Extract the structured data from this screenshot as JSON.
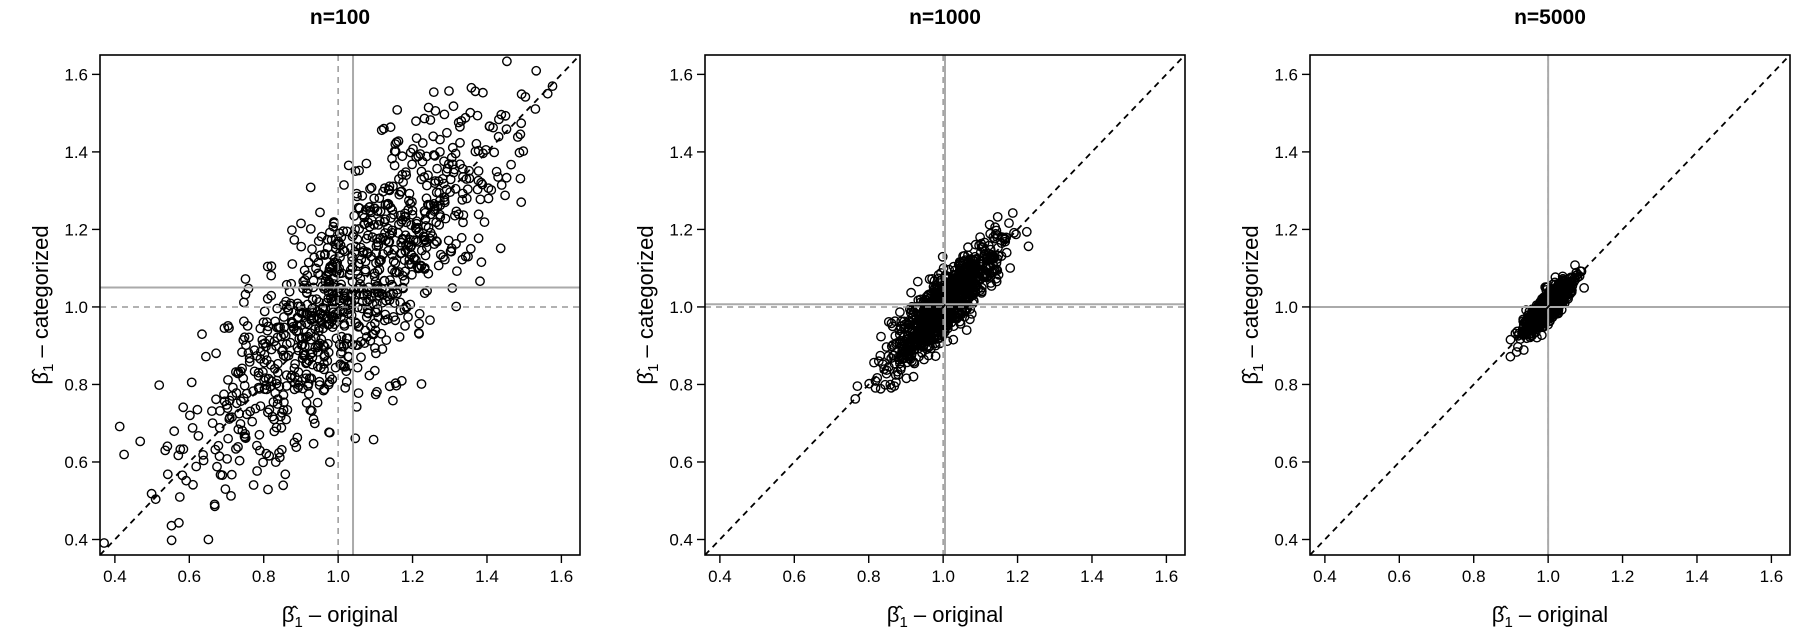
{
  "chart_data": [
    {
      "type": "scatter",
      "title": "n=100",
      "xlabel": "β̂1 – original",
      "ylabel": "β̂1 – categorized",
      "xlim": [
        0.36,
        1.65
      ],
      "ylim": [
        0.36,
        1.65
      ],
      "xticks": [
        0.4,
        0.6,
        0.8,
        1.0,
        1.2,
        1.4,
        1.6
      ],
      "yticks": [
        0.4,
        0.6,
        0.8,
        1.0,
        1.2,
        1.4,
        1.6
      ],
      "reference_lines": {
        "true_value": 1.0,
        "mean_original": 1.04,
        "mean_categorized": 1.05,
        "identity": true
      },
      "cloud": {
        "count": 1000,
        "center": [
          1.04,
          1.05
        ],
        "sd_original": 0.21,
        "sd_categorized": 0.23,
        "correlation": 0.82
      },
      "colors": {
        "points": "#000000",
        "mean_lines": "#aaaaaa",
        "true_lines": "#999999",
        "identity": "#000000"
      }
    },
    {
      "type": "scatter",
      "title": "n=1000",
      "xlabel": "β̂1 – original",
      "ylabel": "β̂1 – categorized",
      "xlim": [
        0.36,
        1.65
      ],
      "ylim": [
        0.36,
        1.65
      ],
      "xticks": [
        0.4,
        0.6,
        0.8,
        1.0,
        1.2,
        1.4,
        1.6
      ],
      "yticks": [
        0.4,
        0.6,
        0.8,
        1.0,
        1.2,
        1.4,
        1.6
      ],
      "reference_lines": {
        "true_value": 1.0,
        "mean_original": 1.005,
        "mean_categorized": 1.007,
        "identity": true
      },
      "cloud": {
        "count": 1000,
        "center": [
          1.005,
          1.007
        ],
        "sd_original": 0.07,
        "sd_categorized": 0.075,
        "correlation": 0.85
      },
      "colors": {
        "points": "#000000",
        "mean_lines": "#aaaaaa",
        "true_lines": "#999999",
        "identity": "#000000"
      }
    },
    {
      "type": "scatter",
      "title": "n=5000",
      "xlabel": "β̂1 – original",
      "ylabel": "β̂1 – categorized",
      "xlim": [
        0.36,
        1.65
      ],
      "ylim": [
        0.36,
        1.65
      ],
      "xticks": [
        0.4,
        0.6,
        0.8,
        1.0,
        1.2,
        1.4,
        1.6
      ],
      "yticks": [
        0.4,
        0.6,
        0.8,
        1.0,
        1.2,
        1.4,
        1.6
      ],
      "reference_lines": {
        "true_value": 1.0,
        "mean_original": 1.0,
        "mean_categorized": 1.0,
        "identity": true
      },
      "cloud": {
        "count": 1000,
        "center": [
          1.0,
          1.0
        ],
        "sd_original": 0.03,
        "sd_categorized": 0.033,
        "correlation": 0.85
      },
      "colors": {
        "points": "#000000",
        "mean_lines": "#aaaaaa",
        "true_lines": "#999999",
        "identity": "#000000"
      }
    }
  ]
}
